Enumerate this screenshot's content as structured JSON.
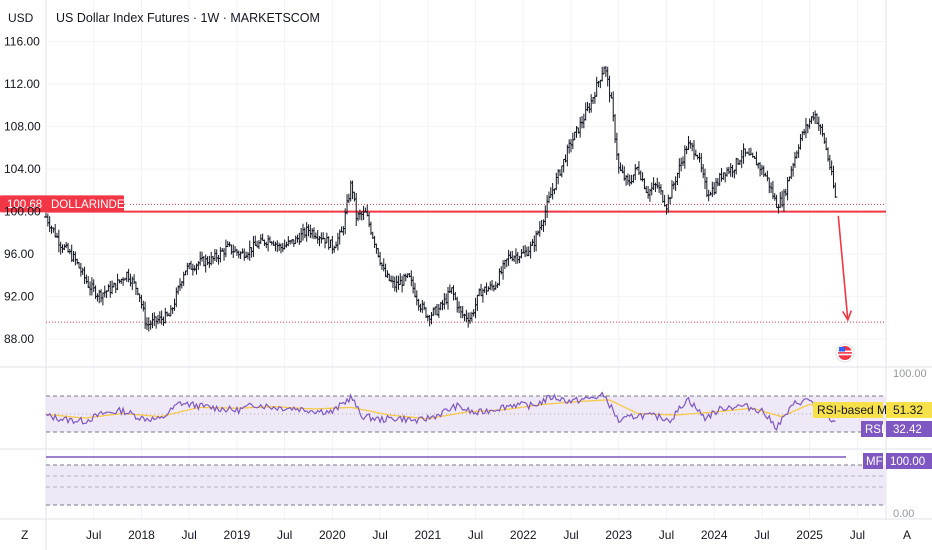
{
  "header": {
    "currency": "USD",
    "title": "US Dollar Index Futures · 1W · MARKETSCOM",
    "corner_left": "Z",
    "corner_right": "A"
  },
  "price_tag": {
    "value": "100.68",
    "label": "DOLLARINDEX"
  },
  "indicators": {
    "rsi_ma_label": "RSI-based MA",
    "rsi_ma_value": "51.32",
    "rsi_label": "RSI",
    "rsi_value": "32.42",
    "mf_label": "MF",
    "mf_value": "100.00",
    "scale_top": "100.00",
    "scale_bottom": "0.00"
  },
  "chart_data": {
    "type": "candlestick",
    "y_ticks": [
      "116.00",
      "112.00",
      "108.00",
      "104.00",
      "100.00",
      "96.00",
      "92.00",
      "88.00"
    ],
    "ylim": [
      86.5,
      118.5
    ],
    "x_ticks": [
      "Jul",
      "2018",
      "Jul",
      "2019",
      "Jul",
      "2020",
      "Jul",
      "2021",
      "Jul",
      "2022",
      "Jul",
      "2023",
      "Jul",
      "2024",
      "Jul",
      "2025",
      "Jul"
    ],
    "x_tick_dates": [
      2017.5,
      2018.0,
      2018.5,
      2019.0,
      2019.5,
      2020.0,
      2020.5,
      2021.0,
      2021.5,
      2022.0,
      2022.5,
      2023.0,
      2023.5,
      2024.0,
      2024.5,
      2025.0,
      2025.5
    ],
    "xlim": [
      2017.0,
      2025.8
    ],
    "support_level": 100.0,
    "upper_dotted_level": 100.68,
    "lower_dotted_level": 89.6,
    "arrow": {
      "from": [
        2025.3,
        99.6
      ],
      "to": [
        2025.4,
        89.8
      ]
    },
    "price_path": [
      [
        2017.0,
        99.5
      ],
      [
        2017.15,
        97.0
      ],
      [
        2017.3,
        95.5
      ],
      [
        2017.45,
        93.0
      ],
      [
        2017.55,
        92.2
      ],
      [
        2017.7,
        92.8
      ],
      [
        2017.85,
        94.2
      ],
      [
        2017.97,
        92.5
      ],
      [
        2018.05,
        89.3
      ],
      [
        2018.15,
        89.7
      ],
      [
        2018.3,
        90.2
      ],
      [
        2018.45,
        94.5
      ],
      [
        2018.6,
        95.2
      ],
      [
        2018.75,
        95.5
      ],
      [
        2018.9,
        96.6
      ],
      [
        2019.05,
        96.0
      ],
      [
        2019.2,
        96.8
      ],
      [
        2019.35,
        97.5
      ],
      [
        2019.45,
        96.6
      ],
      [
        2019.6,
        97.2
      ],
      [
        2019.75,
        98.3
      ],
      [
        2019.9,
        97.6
      ],
      [
        2020.0,
        96.7
      ],
      [
        2020.1,
        98.0
      ],
      [
        2020.2,
        102.8
      ],
      [
        2020.25,
        99.5
      ],
      [
        2020.35,
        99.8
      ],
      [
        2020.45,
        97.0
      ],
      [
        2020.55,
        94.0
      ],
      [
        2020.65,
        93.0
      ],
      [
        2020.8,
        93.8
      ],
      [
        2020.92,
        91.2
      ],
      [
        2021.0,
        90.2
      ],
      [
        2021.12,
        90.8
      ],
      [
        2021.25,
        92.6
      ],
      [
        2021.35,
        90.3
      ],
      [
        2021.45,
        90.0
      ],
      [
        2021.55,
        92.5
      ],
      [
        2021.7,
        93.0
      ],
      [
        2021.85,
        95.8
      ],
      [
        2022.0,
        96.0
      ],
      [
        2022.1,
        96.8
      ],
      [
        2022.2,
        99.2
      ],
      [
        2022.3,
        101.9
      ],
      [
        2022.4,
        104.2
      ],
      [
        2022.5,
        106.5
      ],
      [
        2022.6,
        108.2
      ],
      [
        2022.7,
        110.1
      ],
      [
        2022.8,
        112.5
      ],
      [
        2022.85,
        113.8
      ],
      [
        2022.92,
        110.5
      ],
      [
        2023.0,
        104.0
      ],
      [
        2023.1,
        102.6
      ],
      [
        2023.2,
        104.2
      ],
      [
        2023.3,
        101.8
      ],
      [
        2023.4,
        102.5
      ],
      [
        2023.5,
        100.6
      ],
      [
        2023.6,
        103.2
      ],
      [
        2023.72,
        106.3
      ],
      [
        2023.82,
        105.6
      ],
      [
        2023.92,
        101.8
      ],
      [
        2024.0,
        102.2
      ],
      [
        2024.1,
        103.8
      ],
      [
        2024.2,
        104.1
      ],
      [
        2024.3,
        105.5
      ],
      [
        2024.45,
        104.6
      ],
      [
        2024.55,
        103.2
      ],
      [
        2024.65,
        100.7
      ],
      [
        2024.72,
        101.1
      ],
      [
        2024.8,
        103.8
      ],
      [
        2024.9,
        106.8
      ],
      [
        2025.0,
        108.5
      ],
      [
        2025.05,
        109.3
      ],
      [
        2025.15,
        106.8
      ],
      [
        2025.22,
        103.9
      ],
      [
        2025.28,
        100.7
      ]
    ],
    "rsi_path": [
      [
        2017.0,
        45
      ],
      [
        2017.2,
        40
      ],
      [
        2017.4,
        38
      ],
      [
        2017.6,
        48
      ],
      [
        2017.8,
        52
      ],
      [
        2018.0,
        42
      ],
      [
        2018.2,
        40
      ],
      [
        2018.4,
        62
      ],
      [
        2018.6,
        58
      ],
      [
        2018.8,
        55
      ],
      [
        2019.0,
        52
      ],
      [
        2019.2,
        60
      ],
      [
        2019.4,
        56
      ],
      [
        2019.6,
        55
      ],
      [
        2019.8,
        52
      ],
      [
        2020.0,
        50
      ],
      [
        2020.2,
        70
      ],
      [
        2020.3,
        45
      ],
      [
        2020.5,
        40
      ],
      [
        2020.7,
        42
      ],
      [
        2020.9,
        38
      ],
      [
        2021.1,
        46
      ],
      [
        2021.3,
        58
      ],
      [
        2021.5,
        48
      ],
      [
        2021.7,
        54
      ],
      [
        2021.9,
        60
      ],
      [
        2022.1,
        58
      ],
      [
        2022.3,
        70
      ],
      [
        2022.5,
        64
      ],
      [
        2022.7,
        68
      ],
      [
        2022.85,
        72
      ],
      [
        2023.0,
        38
      ],
      [
        2023.2,
        46
      ],
      [
        2023.4,
        44
      ],
      [
        2023.55,
        40
      ],
      [
        2023.72,
        68
      ],
      [
        2023.9,
        42
      ],
      [
        2024.1,
        56
      ],
      [
        2024.3,
        58
      ],
      [
        2024.5,
        52
      ],
      [
        2024.65,
        30
      ],
      [
        2024.85,
        62
      ],
      [
        2025.0,
        66
      ],
      [
        2025.1,
        58
      ],
      [
        2025.28,
        32
      ]
    ],
    "rsi_ma_path": [
      [
        2017.0,
        47
      ],
      [
        2017.4,
        42
      ],
      [
        2017.8,
        48
      ],
      [
        2018.2,
        44
      ],
      [
        2018.6,
        56
      ],
      [
        2019.0,
        55
      ],
      [
        2019.4,
        57
      ],
      [
        2019.8,
        54
      ],
      [
        2020.2,
        56
      ],
      [
        2020.6,
        46
      ],
      [
        2021.0,
        41
      ],
      [
        2021.4,
        50
      ],
      [
        2021.8,
        53
      ],
      [
        2022.2,
        60
      ],
      [
        2022.6,
        64
      ],
      [
        2022.9,
        66
      ],
      [
        2023.2,
        48
      ],
      [
        2023.6,
        46
      ],
      [
        2024.0,
        50
      ],
      [
        2024.4,
        55
      ],
      [
        2024.7,
        44
      ],
      [
        2025.0,
        60
      ],
      [
        2025.28,
        51.32
      ]
    ],
    "mf_value": 100.0
  }
}
